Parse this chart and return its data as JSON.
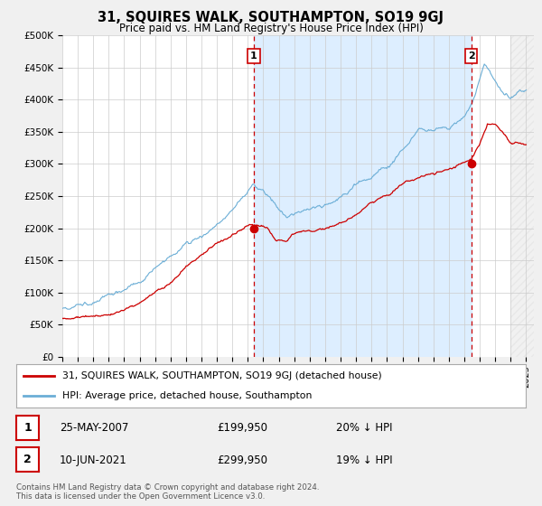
{
  "title": "31, SQUIRES WALK, SOUTHAMPTON, SO19 9GJ",
  "subtitle": "Price paid vs. HM Land Registry's House Price Index (HPI)",
  "background_color": "#f8f8f8",
  "plot_bg_color": "#ffffff",
  "ylim": [
    0,
    500000
  ],
  "yticks": [
    0,
    50000,
    100000,
    150000,
    200000,
    250000,
    300000,
    350000,
    400000,
    450000,
    500000
  ],
  "ytick_labels": [
    "£0",
    "£50K",
    "£100K",
    "£150K",
    "£200K",
    "£250K",
    "£300K",
    "£350K",
    "£400K",
    "£450K",
    "£500K"
  ],
  "sale1_year": 2007.39,
  "sale1_value": 199950,
  "sale2_year": 2021.44,
  "sale2_value": 299950,
  "red_color": "#cc0000",
  "blue_color": "#6baed6",
  "shade_color": "#ddeeff",
  "legend_label1": "31, SQUIRES WALK, SOUTHAMPTON, SO19 9GJ (detached house)",
  "legend_label2": "HPI: Average price, detached house, Southampton",
  "table_row1": [
    "1",
    "25-MAY-2007",
    "£199,950",
    "20% ↓ HPI"
  ],
  "table_row2": [
    "2",
    "10-JUN-2021",
    "£299,950",
    "19% ↓ HPI"
  ],
  "footnote": "Contains HM Land Registry data © Crown copyright and database right 2024.\nThis data is licensed under the Open Government Licence v3.0.",
  "x_start_year": 1995,
  "x_end_year": 2025
}
